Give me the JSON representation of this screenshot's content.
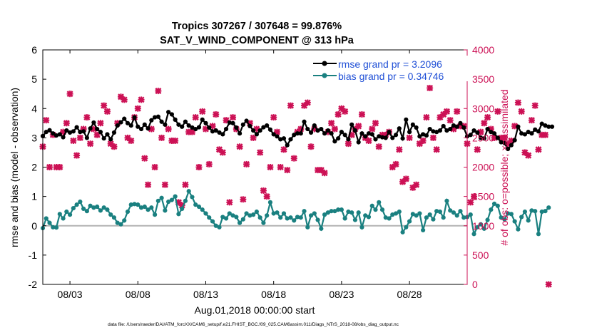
{
  "chart_data": {
    "type": "line",
    "title_line1": "Tropics 307267 / 307648 = 99.876%",
    "title_line2": "SAT_V_WIND_COMPONENT @ 313 hPa",
    "ylabel_left": "rmse and bias (model - observation)",
    "ylabel_right": "# of obs: o=possible; ×=assimilated",
    "xlabel": "Aug.01,2018 00:00:00 start",
    "footnote": "data file: /Users/raeder/DAI/ATM_forcXX/CAM6_setup/f.e21.FHIST_BGC.f09_025.CAM6assim.011/Diags_NTrS_2018-08/obs_diag_output.nc",
    "xlim": [
      1.0,
      32.25
    ],
    "ylim_left": [
      -2,
      6
    ],
    "ylim_right": [
      0,
      4000
    ],
    "yticks_left": [
      -2,
      -1,
      0,
      1,
      2,
      3,
      4,
      5,
      6
    ],
    "yticks_right": [
      0,
      500,
      1000,
      1500,
      2000,
      2500,
      3000,
      3500,
      4000
    ],
    "xticks": [
      {
        "x": 3,
        "label": "08/03"
      },
      {
        "x": 8,
        "label": "08/08"
      },
      {
        "x": 13,
        "label": "08/13"
      },
      {
        "x": 18,
        "label": "08/18"
      },
      {
        "x": 23,
        "label": "08/23"
      },
      {
        "x": 28,
        "label": "08/28"
      }
    ],
    "x_start": 1.0,
    "x_step": 0.25,
    "legend": {
      "position": "top-right",
      "entries": [
        "rmse grand pr = 3.2096",
        "bias grand pr = 0.34746"
      ]
    },
    "colors": {
      "rmse": "#000000",
      "bias": "#1a8080",
      "obs": "#cc1155",
      "right_axis": "#cc1155",
      "zero_line": "#b3b3b3",
      "legend_text": "#1f4fd6"
    },
    "series": [
      {
        "name": "rmse",
        "values": [
          3.06,
          3.2,
          3.26,
          3.15,
          3.08,
          3.12,
          3.02,
          3.25,
          3.18,
          3.22,
          3.36,
          3.2,
          3.22,
          3.0,
          3.32,
          3.52,
          3.3,
          3.2,
          2.98,
          3.12,
          2.95,
          3.18,
          3.42,
          3.53,
          3.65,
          3.5,
          3.42,
          3.7,
          3.38,
          3.3,
          3.45,
          3.32,
          3.6,
          3.7,
          3.72,
          3.55,
          3.45,
          3.88,
          3.8,
          3.62,
          3.45,
          3.38,
          3.55,
          3.42,
          3.35,
          3.3,
          3.36,
          3.62,
          3.5,
          3.35,
          3.22,
          3.25,
          3.18,
          3.12,
          3.3,
          3.52,
          3.5,
          3.35,
          3.15,
          3.45,
          3.58,
          3.4,
          3.25,
          3.12,
          3.25,
          3.36,
          3.42,
          3.28,
          3.12,
          3.05,
          2.95,
          2.98,
          2.75,
          2.95,
          3.1,
          3.15,
          3.15,
          3.55,
          3.3,
          3.18,
          3.42,
          3.25,
          3.3,
          3.15,
          3.25,
          3.15,
          2.88,
          2.98,
          3.2,
          3.1,
          2.95,
          3.45,
          3.25,
          2.85,
          3.15,
          3.05,
          3.15,
          3.12,
          2.95,
          3.05,
          3.02,
          3.0,
          3.2,
          3.0,
          3.1,
          3.32,
          2.98,
          3.62,
          3.2,
          3.45,
          3.35,
          3.05,
          3.12,
          3.08,
          3.3,
          3.22,
          3.2,
          3.25,
          3.4,
          3.25,
          3.3,
          3.42,
          3.38,
          3.5,
          3.35,
          3.05,
          3.1,
          3.25,
          3.18,
          3.0,
          2.98,
          3.3,
          3.2,
          3.15,
          3.0,
          2.85,
          2.82,
          2.62,
          2.75,
          2.92,
          3.38,
          3.15,
          3.12,
          3.2,
          3.15,
          3.28,
          3.22,
          3.48,
          3.42,
          3.38,
          3.38
        ],
        "color": "#000000"
      },
      {
        "name": "bias",
        "values": [
          -0.08,
          0.25,
          0.1,
          -0.05,
          -0.06,
          0.4,
          0.25,
          0.48,
          0.38,
          0.6,
          0.72,
          0.82,
          0.58,
          0.5,
          0.68,
          0.62,
          0.65,
          0.52,
          0.62,
          0.55,
          0.38,
          0.28,
          0.1,
          0.05,
          0.18,
          0.48,
          0.72,
          0.74,
          0.72,
          0.62,
          0.65,
          0.55,
          0.62,
          0.38,
          0.85,
          0.95,
          0.52,
          0.82,
          0.88,
          1.0,
          0.4,
          0.58,
          0.85,
          1.18,
          0.98,
          0.72,
          0.65,
          0.55,
          0.42,
          0.28,
          0.15,
          0.0,
          -0.05,
          0.3,
          0.25,
          0.42,
          0.35,
          0.3,
          0.1,
          0.22,
          0.42,
          0.35,
          0.38,
          0.48,
          0.28,
          0.1,
          0.35,
          0.8,
          0.42,
          0.45,
          0.28,
          0.42,
          0.25,
          0.28,
          0.18,
          0.3,
          0.28,
          0.5,
          -0.05,
          0.35,
          0.42,
          0.2,
          -0.1,
          0.38,
          0.45,
          0.5,
          0.5,
          0.55,
          0.55,
          0.25,
          0.48,
          0.45,
          0.2,
          0.45,
          -0.05,
          0.35,
          0.3,
          0.68,
          0.55,
          0.8,
          0.55,
          0.28,
          0.25,
          0.38,
          0.42,
          0.48,
          -0.22,
          -0.05,
          0.15,
          0.4,
          0.35,
          0.42,
          -0.15,
          0.28,
          0.38,
          0.22,
          0.5,
          0.48,
          0.28,
          0.85,
          0.52,
          0.45,
          0.35,
          0.5,
          0.28,
          0.3,
          0.38,
          -0.28,
          -0.05,
          0.05,
          -0.1,
          0.2,
          0.55,
          0.75,
          0.68,
          0.28,
          0.22,
          0.42,
          0.4,
          0.15,
          -0.12,
          0.3,
          0.48,
          0.18,
          0.52,
          0.5,
          -0.28,
          0.48,
          0.5,
          0.62
        ],
        "color": "#1a8080"
      },
      {
        "name": "obs_assimilated",
        "values": [
          2350,
          2800,
          2000,
          2550,
          2000,
          2000,
          2600,
          2750,
          3250,
          2450,
          2200,
          2500,
          2650,
          2850,
          2400,
          2650,
          2550,
          2750,
          3050,
          2950,
          2400,
          2350,
          2750,
          3200,
          3150,
          2500,
          2450,
          2850,
          3000,
          3150,
          2150,
          1700,
          2650,
          2000,
          3300,
          2500,
          1700,
          2650,
          2450,
          2450,
          1400,
          1350,
          1700,
          2600,
          2600,
          2850,
          2000,
          2950,
          2650,
          2050,
          2700,
          2900,
          2300,
          2250,
          2800,
          1400,
          2850,
          2650,
          2350,
          1450,
          2050,
          2750,
          2500,
          2650,
          2250,
          1600,
          1500,
          2000,
          2850,
          2600,
          2000,
          2300,
          1950,
          3050,
          2150,
          2600,
          2650,
          3050,
          3100,
          2350,
          2650,
          1950,
          1950,
          1900,
          2600,
          2750,
          2650,
          2900,
          3000,
          2950,
          2400,
          2550,
          2650,
          2700,
          2900,
          2500,
          2450,
          2650,
          2750,
          2350,
          2550,
          2550,
          2600,
          2000,
          2050,
          2300,
          1750,
          1800,
          2500,
          1650,
          1700,
          2400,
          2450,
          2850,
          3350,
          2500,
          2300,
          2850,
          2900,
          2950,
          2800,
          2650,
          2950,
          2700,
          2700,
          2400,
          1400,
          1500,
          2300,
          2600,
          2750,
          2850,
          2650,
          2500,
          2950,
          2500,
          2500,
          2400,
          2450,
          2700,
          3100,
          2950,
          2250,
          2200,
          2800,
          3050,
          2300,
          2550,
          2550,
          0
        ],
        "color": "#cc1155"
      }
    ]
  }
}
